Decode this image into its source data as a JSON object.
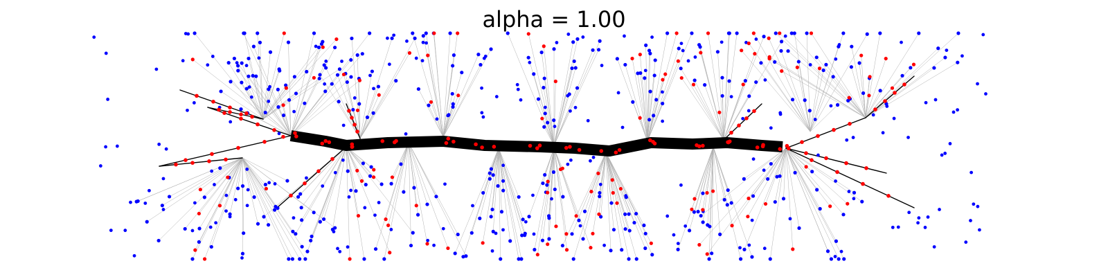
{
  "figure": {
    "title": "alpha = 1.00"
  },
  "style": {
    "background": "#ffffff",
    "leaf_node_color": "#0000ff",
    "steiner_node_color": "#ff0000",
    "thin_edge_color": "#b0b0b0",
    "trunk_edge_color": "#000000"
  }
}
